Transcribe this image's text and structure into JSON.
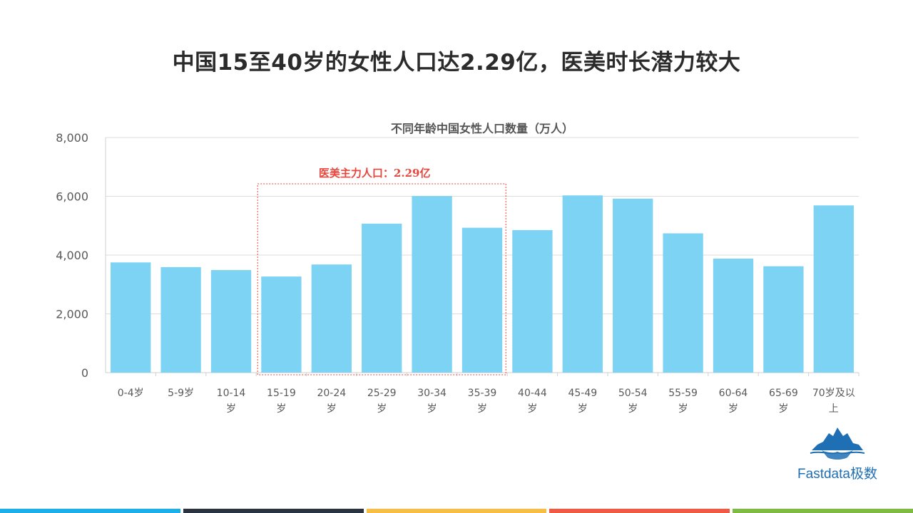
{
  "page": {
    "title": "中国15至40岁的女性人口达2.29亿，医美时长潜力较大"
  },
  "logo": {
    "text": "Fastdata极数",
    "icon": "iceberg-logo-icon"
  },
  "footer": {
    "stripe_colors": [
      "#1eaee8",
      "#2a3340",
      "#f7bd45",
      "#ef5a45",
      "#7fba42"
    ]
  },
  "chart_data": {
    "type": "bar",
    "title": "不同年龄中国女性人口数量（万人）",
    "categories": [
      "0-4岁",
      "5-9岁",
      "10-14岁",
      "15-19岁",
      "20-24岁",
      "25-29岁",
      "30-34岁",
      "35-39岁",
      "40-44岁",
      "45-49岁",
      "50-54岁",
      "55-59岁",
      "60-64岁",
      "65-69岁",
      "70岁及以上"
    ],
    "values": [
      3750,
      3590,
      3490,
      3270,
      3680,
      5070,
      6010,
      4930,
      4850,
      6030,
      5920,
      4740,
      3880,
      3620,
      5690
    ],
    "ylim": [
      0,
      8000
    ],
    "yticks": [
      "0",
      "2,000",
      "4,000",
      "6,000",
      "8,000"
    ],
    "ytick_values": [
      0,
      2000,
      4000,
      6000,
      8000
    ],
    "grid": true,
    "bar_color": "#7dd3f3",
    "annotation": {
      "text": "医美主力人口：2.29亿",
      "color": "#e8463c",
      "category_range": [
        3,
        7
      ]
    }
  }
}
